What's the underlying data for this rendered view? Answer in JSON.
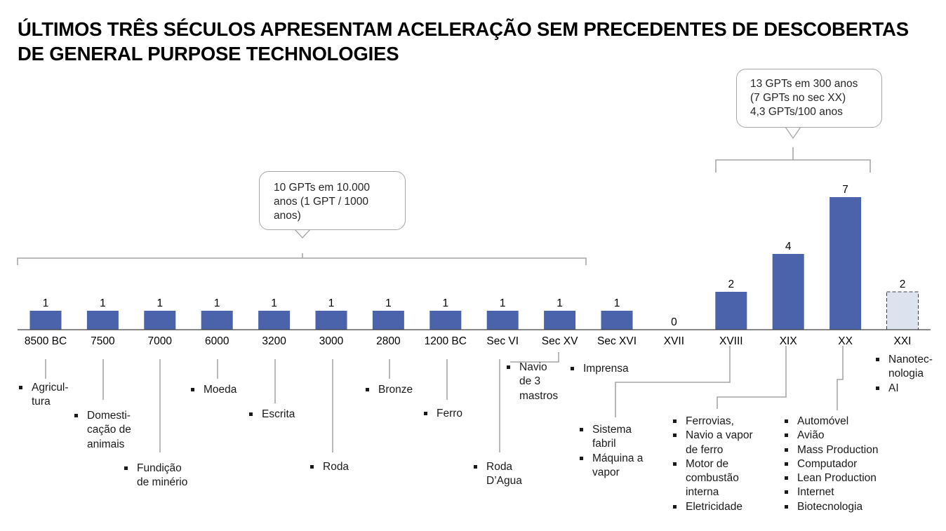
{
  "title": {
    "line1": "ÚLTIMOS TRÊS SÉCULOS APRESENTAM ACELERAÇÃO SEM PRECEDENTES DE DESCOBERTAS",
    "line2": "DE GENERAL PURPOSE TECHNOLOGIES"
  },
  "callouts": {
    "left": [
      "10 GPTs em 10.000",
      "anos (1 GPT / 1000",
      "anos)"
    ],
    "right": [
      "13 GPTs em 300 anos",
      "(7 GPTs no sec XX)",
      "4,3 GPTs/100 anos"
    ]
  },
  "colors": {
    "bar": "#4a63ab",
    "bar_projected_fill": "#dde3ee",
    "connector": "#a6a6a6",
    "axis": "#404040"
  },
  "chart_data": {
    "type": "bar",
    "categories": [
      "8500 BC",
      "7500",
      "7000",
      "6000",
      "3200",
      "3000",
      "2800",
      "1200 BC",
      "Sec VI",
      "Sec XV",
      "Sec XVI",
      "XVII",
      "XVIII",
      "XIX",
      "XX",
      "XXI"
    ],
    "values": [
      1,
      1,
      1,
      1,
      1,
      1,
      1,
      1,
      1,
      1,
      1,
      0,
      2,
      4,
      7,
      2
    ],
    "data_labels": [
      "1",
      "1",
      "1",
      "1",
      "1",
      "1",
      "1",
      "1",
      "1",
      "1",
      "1",
      "0",
      "2",
      "4",
      "7",
      "2"
    ],
    "projected": [
      false,
      false,
      false,
      false,
      false,
      false,
      false,
      false,
      false,
      false,
      false,
      false,
      false,
      false,
      false,
      true
    ],
    "ylim": [
      0,
      7
    ],
    "grid": false,
    "xlabel": "",
    "ylabel": ""
  },
  "technologies": [
    {
      "category": "8500 BC",
      "items": [
        "Agricul-\ntura"
      ]
    },
    {
      "category": "7500",
      "items": [
        "Domesti-\ncação de\nanimais"
      ]
    },
    {
      "category": "7000",
      "items": [
        "Fundição\nde minério"
      ]
    },
    {
      "category": "6000",
      "items": [
        "Moeda"
      ]
    },
    {
      "category": "3200",
      "items": [
        "Escrita"
      ]
    },
    {
      "category": "3000",
      "items": [
        "Roda"
      ]
    },
    {
      "category": "2800",
      "items": [
        "Bronze"
      ]
    },
    {
      "category": "1200 BC",
      "items": [
        "Ferro"
      ]
    },
    {
      "category": "Sec VI",
      "items": [
        "Roda\nD’Agua"
      ]
    },
    {
      "category": "Sec XV",
      "items": [
        "Navio\nde 3\nmastros"
      ]
    },
    {
      "category": "Sec XVI",
      "items": [
        "Imprensa"
      ]
    },
    {
      "category": "XVIII",
      "items": [
        "Sistema\nfabril",
        "Máquina a\nvapor"
      ]
    },
    {
      "category": "XIX",
      "items": [
        "Ferrovias,",
        "Navio a vapor\nde ferro",
        "Motor de\ncombustão\ninterna",
        "Eletricidade"
      ]
    },
    {
      "category": "XX",
      "items": [
        "Automóvel",
        "Avião",
        "Mass Production",
        "Computador",
        "Lean Production",
        "Internet",
        "Biotecnologia"
      ]
    },
    {
      "category": "XXI",
      "items": [
        "Nanotec-\nnologia",
        "AI"
      ]
    }
  ]
}
